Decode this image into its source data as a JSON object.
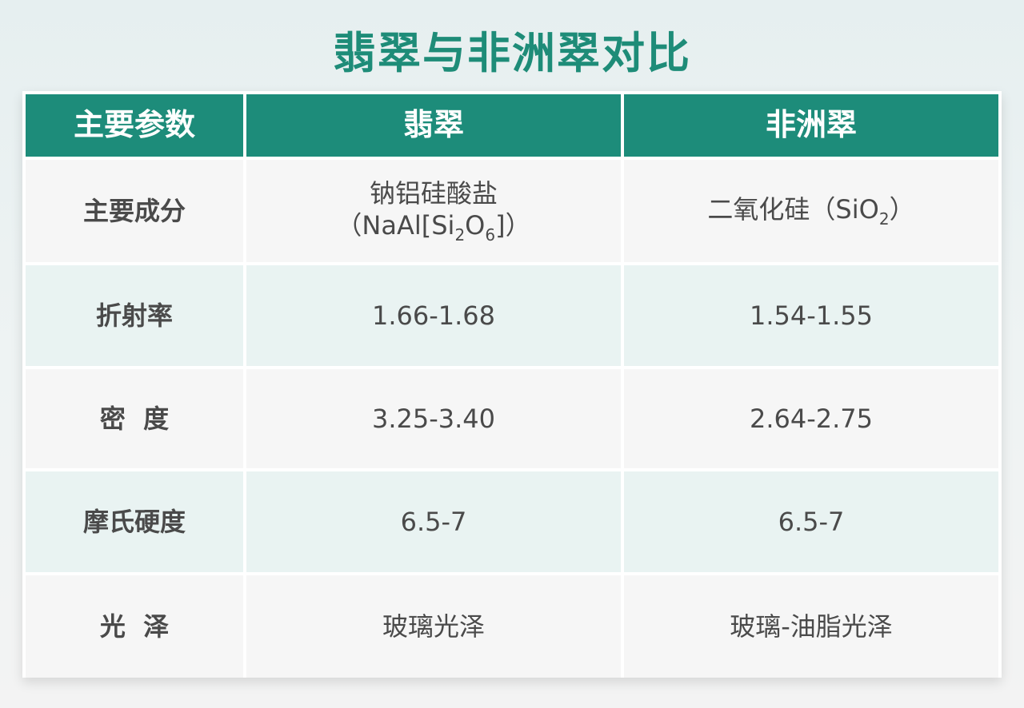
{
  "title": "翡翠与非洲翠对比",
  "colors": {
    "accent": "#1d8c7a",
    "row_alt": "#e9f3f2",
    "row": "#f6f6f6"
  },
  "headers": [
    "主要参数",
    "翡翠",
    "非洲翠"
  ],
  "rows": [
    {
      "label": "主要成分",
      "jade": {
        "line1": "钠铝硅酸盐",
        "p1": "（NaAl[Si",
        "s1": "2",
        "p2": "O",
        "s2": "6",
        "p3": "]）"
      },
      "african": {
        "p1": "二氧化硅（SiO",
        "s1": "2",
        "p2": "）"
      }
    },
    {
      "label": "折射率",
      "jade": "1.66-1.68",
      "african": "1.54-1.55"
    },
    {
      "label": "密  度",
      "jade": "3.25-3.40",
      "african": "2.64-2.75"
    },
    {
      "label": "摩氏硬度",
      "jade": "6.5-7",
      "african": "6.5-7"
    },
    {
      "label": "光  泽",
      "jade": "玻璃光泽",
      "african": "玻璃-油脂光泽"
    }
  ]
}
